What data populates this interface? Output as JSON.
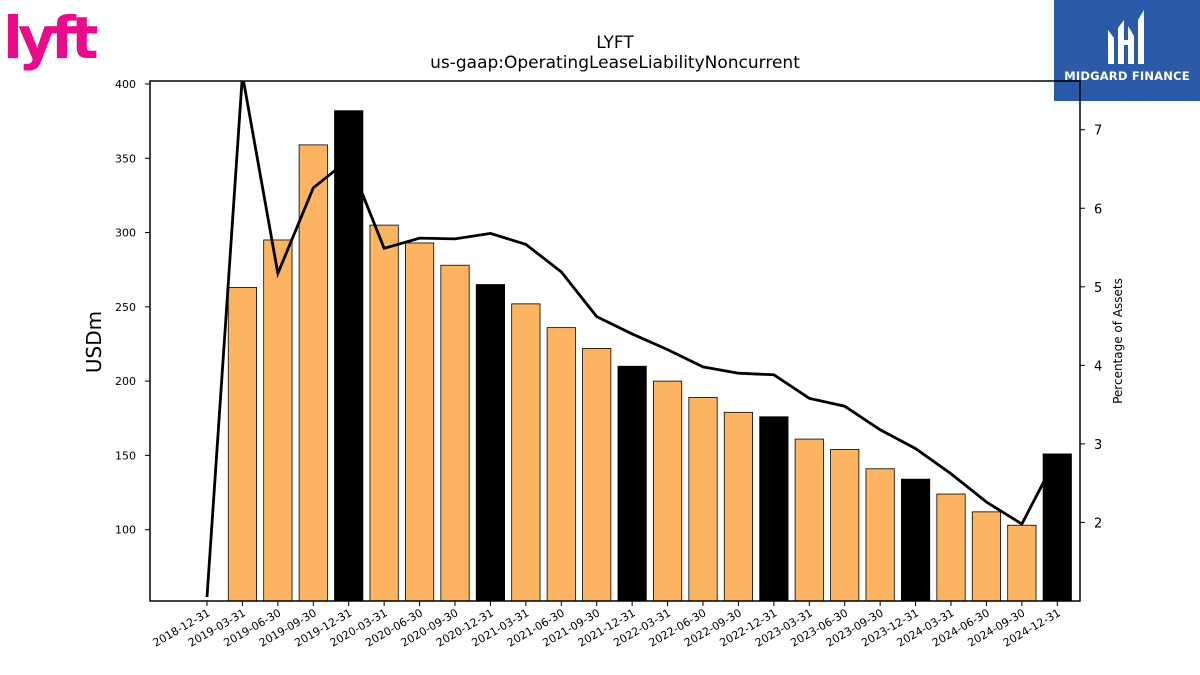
{
  "brand": {
    "company": "lyft",
    "company_color": "#ea0b8c",
    "sponsor": "MIDGARD FINANCE",
    "sponsor_bg": "#2b5aa8"
  },
  "chart_data": {
    "type": "bar",
    "title": "LYFT",
    "subtitle": "us-gaap:OperatingLeaseLiabilityNoncurrent",
    "ylabel": "USDm",
    "y2label": "Percentage of Assets",
    "ylim": [
      52,
      402
    ],
    "y2lim": [
      1,
      7.62
    ],
    "yticks": [
      100,
      150,
      200,
      250,
      300,
      350,
      400
    ],
    "y2ticks": [
      2,
      3,
      4,
      5,
      6,
      7
    ],
    "grid": false,
    "legend": "none",
    "categories": [
      "2018-12-31",
      "2019-03-31",
      "2019-06-30",
      "2019-09-30",
      "2019-12-31",
      "2020-03-31",
      "2020-06-30",
      "2020-09-30",
      "2020-12-31",
      "2021-03-31",
      "2021-06-30",
      "2021-09-30",
      "2021-12-31",
      "2022-03-31",
      "2022-06-30",
      "2022-09-30",
      "2022-12-31",
      "2023-03-31",
      "2023-06-30",
      "2023-09-30",
      "2023-12-31",
      "2024-03-31",
      "2024-06-30",
      "2024-09-30",
      "2024-12-31"
    ],
    "series": [
      {
        "type": "bar",
        "values": [
          null,
          263,
          295,
          359,
          382,
          305,
          293,
          278,
          265,
          252,
          236,
          222,
          210,
          200,
          189,
          179,
          176,
          161,
          154,
          141,
          134,
          124,
          112,
          103,
          151
        ],
        "colors": [
          "#fdb462",
          "#fdb462",
          "#fdb462",
          "#fdb462",
          "#000000",
          "#fdb462",
          "#fdb462",
          "#fdb462",
          "#000000",
          "#fdb462",
          "#fdb462",
          "#fdb462",
          "#000000",
          "#fdb462",
          "#fdb462",
          "#fdb462",
          "#000000",
          "#fdb462",
          "#fdb462",
          "#fdb462",
          "#000000",
          "#fdb462",
          "#fdb462",
          "#fdb462",
          "#000000"
        ]
      },
      {
        "type": "line",
        "axis": "right",
        "color": "#000000",
        "values": [
          1.05,
          7.7,
          5.17,
          6.26,
          6.62,
          5.49,
          5.62,
          5.61,
          5.68,
          5.54,
          5.19,
          4.62,
          4.4,
          4.2,
          3.98,
          3.9,
          3.88,
          3.58,
          3.48,
          3.18,
          2.94,
          2.62,
          2.26,
          1.98,
          2.85
        ]
      }
    ]
  }
}
